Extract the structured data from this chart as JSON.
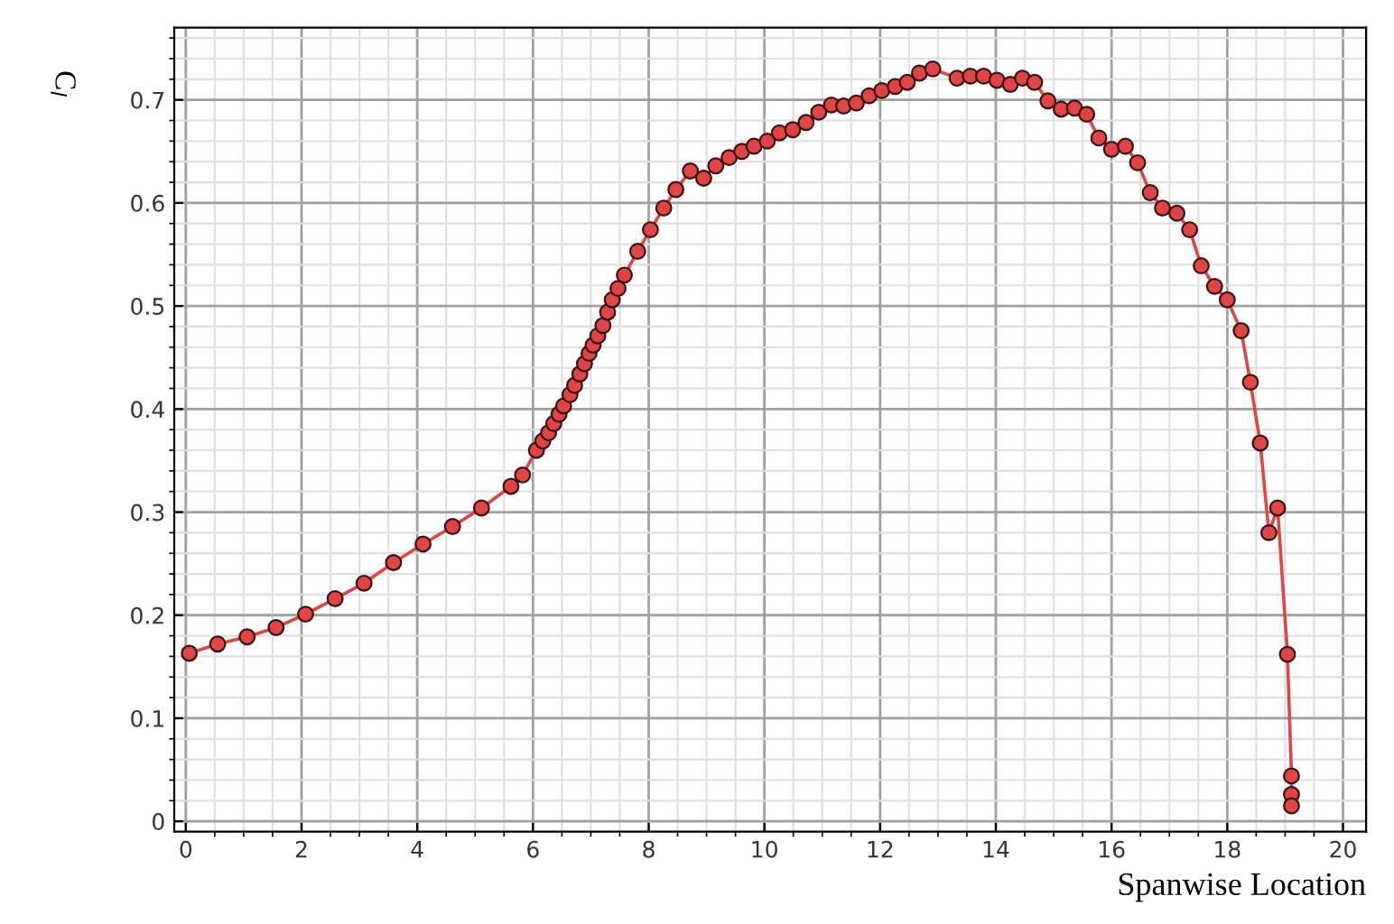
{
  "chart_data": {
    "type": "line",
    "xlabel": "Spanwise Location",
    "ylabel": "C$_{l}$",
    "x": [
      0.06,
      0.55,
      1.06,
      1.56,
      2.07,
      2.58,
      3.08,
      3.59,
      4.1,
      4.61,
      5.11,
      5.62,
      5.82,
      6.06,
      6.17,
      6.27,
      6.36,
      6.45,
      6.53,
      6.64,
      6.72,
      6.81,
      6.89,
      6.97,
      7.04,
      7.12,
      7.21,
      7.29,
      7.37,
      7.47,
      7.58,
      7.81,
      8.03,
      8.26,
      8.47,
      8.72,
      8.95,
      9.16,
      9.39,
      9.61,
      9.82,
      10.05,
      10.26,
      10.49,
      10.72,
      10.94,
      11.16,
      11.37,
      11.59,
      11.81,
      12.03,
      12.26,
      12.47,
      12.68,
      12.91,
      13.33,
      13.56,
      13.79,
      14.02,
      14.25,
      14.46,
      14.67,
      14.9,
      15.13,
      15.36,
      15.57,
      15.78,
      16.0,
      16.24,
      16.45,
      16.67,
      16.88,
      17.13,
      17.35,
      17.55,
      17.78,
      18.0,
      18.24,
      18.4,
      18.57,
      18.72,
      18.87,
      19.04,
      19.11,
      19.11,
      19.11
    ],
    "series": [
      {
        "color": "#e04545",
        "values": [
          0.163,
          0.172,
          0.179,
          0.188,
          0.201,
          0.216,
          0.231,
          0.251,
          0.269,
          0.286,
          0.304,
          0.325,
          0.336,
          0.36,
          0.369,
          0.377,
          0.386,
          0.395,
          0.403,
          0.414,
          0.423,
          0.434,
          0.444,
          0.454,
          0.462,
          0.471,
          0.481,
          0.494,
          0.506,
          0.517,
          0.53,
          0.553,
          0.574,
          0.595,
          0.613,
          0.631,
          0.624,
          0.636,
          0.644,
          0.65,
          0.655,
          0.66,
          0.668,
          0.671,
          0.678,
          0.688,
          0.695,
          0.694,
          0.697,
          0.704,
          0.709,
          0.713,
          0.717,
          0.726,
          0.73,
          0.721,
          0.723,
          0.723,
          0.719,
          0.715,
          0.721,
          0.717,
          0.699,
          0.691,
          0.692,
          0.686,
          0.663,
          0.652,
          0.655,
          0.639,
          0.61,
          0.595,
          0.59,
          0.574,
          0.539,
          0.519,
          0.506,
          0.476,
          0.426,
          0.367,
          0.28,
          0.304,
          0.162,
          0.044,
          0.026,
          0.015
        ]
      }
    ],
    "xlim": [
      -0.2,
      20.4
    ],
    "ylim": [
      -0.01,
      0.77
    ],
    "xticks": [
      0,
      2,
      4,
      6,
      8,
      10,
      12,
      14,
      16,
      18,
      20
    ],
    "yticks": [
      0,
      0.1,
      0.2,
      0.3,
      0.4,
      0.5,
      0.6,
      0.7
    ],
    "grid": true,
    "marker": "circle",
    "line_style": "solid"
  }
}
